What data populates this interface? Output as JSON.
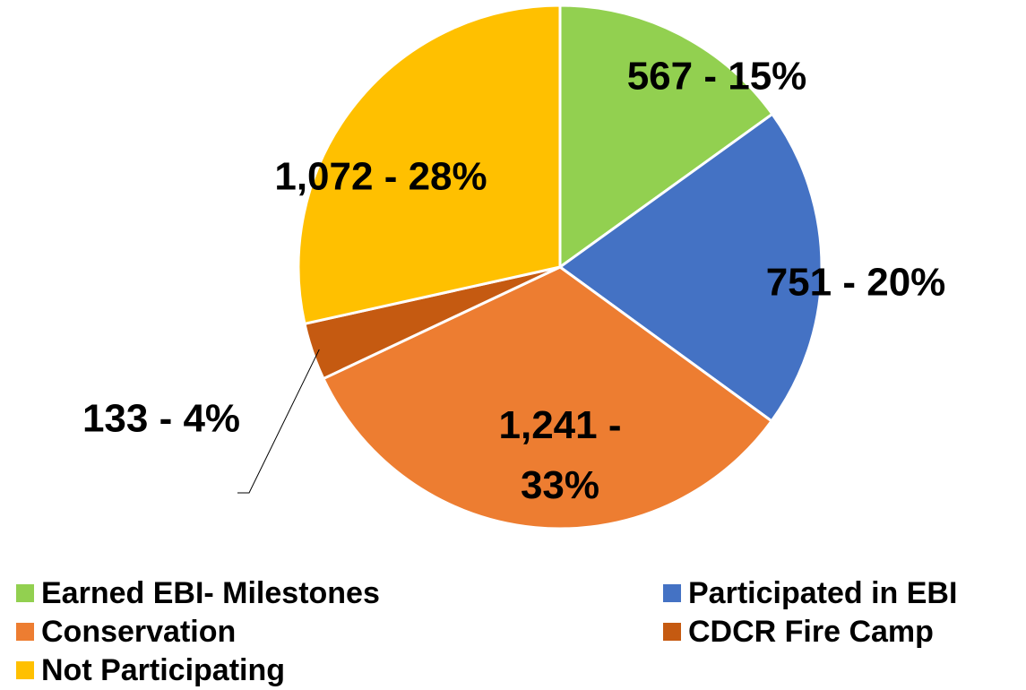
{
  "chart_data": {
    "type": "pie",
    "categories": [
      "Earned EBI- Milestones",
      "Participated in EBI",
      "Conservation",
      "CDCR Fire Camp",
      "Not Participating"
    ],
    "values": [
      567,
      751,
      1241,
      133,
      1072
    ],
    "value_labels": [
      "567 - 15%",
      "751 - 20%",
      "1,241 - 33%",
      "133 - 4%",
      "1,072 - 28%"
    ],
    "colors": [
      "#92d050",
      "#4472c4",
      "#ed7d31",
      "#c55a11",
      "#ffc000"
    ],
    "legend": "bottom"
  }
}
